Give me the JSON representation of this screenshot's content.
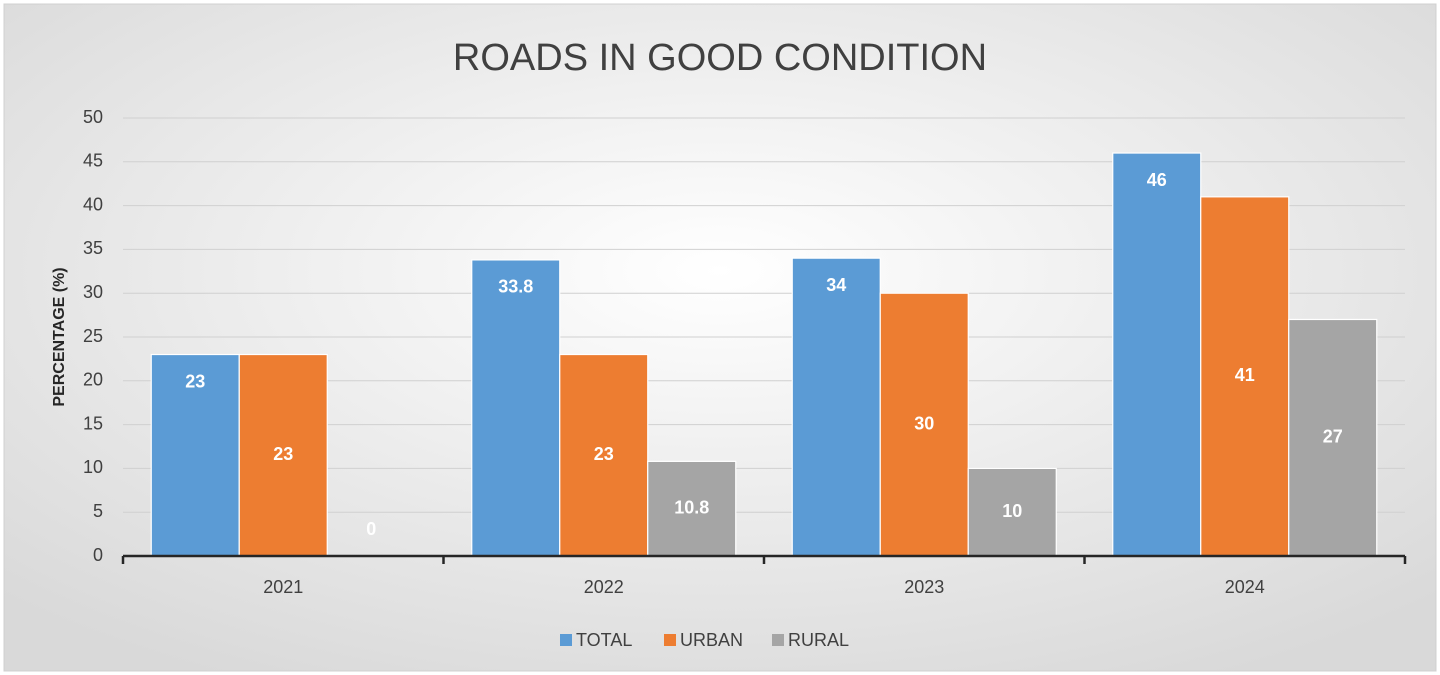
{
  "chart_data": {
    "type": "bar",
    "title": "ROADS IN GOOD CONDITION",
    "y_label": "PERCENTAGE (%)",
    "categories": [
      "2021",
      "2022",
      "2023",
      "2024"
    ],
    "series": [
      {
        "name": "TOTAL",
        "color": "#5b9bd5",
        "values": [
          23,
          33.8,
          34,
          46
        ]
      },
      {
        "name": "URBAN",
        "color": "#ed7d31",
        "values": [
          23,
          23,
          30,
          41
        ]
      },
      {
        "name": "RURAL",
        "color": "#a5a5a5",
        "values": [
          0,
          10.8,
          10,
          27
        ]
      }
    ],
    "ylim": [
      0,
      50
    ],
    "yticks": [
      0,
      5,
      10,
      15,
      20,
      25,
      30,
      35,
      40,
      45,
      50
    ],
    "grid": true,
    "legend": "bottom"
  }
}
